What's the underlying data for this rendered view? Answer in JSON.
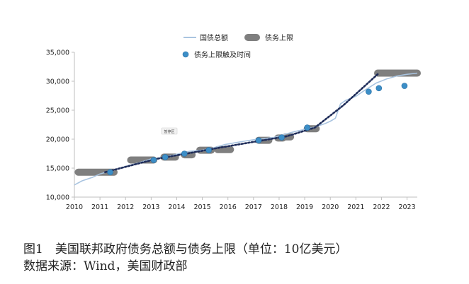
{
  "chart_data": {
    "type": "line",
    "x_range": [
      2010,
      2023.4
    ],
    "ylim": [
      10000,
      35000
    ],
    "y_ticks": [
      10000,
      15000,
      20000,
      25000,
      30000,
      35000
    ],
    "y_tick_labels": [
      "10,000",
      "15,000",
      "20,000",
      "25,000",
      "30,000",
      "35,000"
    ],
    "x_ticks": [
      2010,
      2011,
      2012,
      2013,
      2014,
      2015,
      2016,
      2017,
      2018,
      2019,
      2020,
      2021,
      2022,
      2023
    ],
    "x_tick_labels": [
      "2010",
      "2011",
      "2012",
      "2013",
      "2014",
      "2015",
      "2016",
      "2017",
      "2018",
      "2019",
      "2020",
      "2021",
      "2022",
      "2023"
    ],
    "legend": {
      "placement": "top-center",
      "debt_label": "国债总额",
      "ceiling_label": "债务上限",
      "hit_label": "债务上限触及时间"
    },
    "annotation": "暂停区",
    "series": [
      {
        "name": "国债总额",
        "color": "#a9c4e0",
        "x": [
          2010.0,
          2010.3,
          2010.7,
          2011.0,
          2011.4,
          2011.7,
          2012.0,
          2012.5,
          2013.0,
          2013.5,
          2013.8,
          2014.2,
          2014.5,
          2015.0,
          2015.5,
          2015.9,
          2016.3,
          2016.7,
          2017.0,
          2017.4,
          2017.8,
          2018.2,
          2018.6,
          2019.0,
          2019.4,
          2019.8,
          2020.0,
          2020.2,
          2020.4,
          2020.6,
          2021.0,
          2021.4,
          2021.8,
          2022.2,
          2022.6,
          2023.0,
          2023.4
        ],
        "y": [
          12100,
          12800,
          13400,
          14000,
          14500,
          14900,
          15300,
          15900,
          16600,
          16900,
          17200,
          17600,
          17900,
          18100,
          18600,
          19100,
          19400,
          19700,
          19900,
          20100,
          20300,
          20800,
          21300,
          21700,
          22100,
          22700,
          23100,
          23600,
          26100,
          26700,
          27400,
          28600,
          29700,
          30400,
          30900,
          31200,
          31400
        ]
      },
      {
        "name": "债务上限",
        "color": "#7f7f7f",
        "segments": [
          {
            "x_start": 2010.15,
            "x_end": 2011.55,
            "y": 14300
          },
          {
            "x_start": 2012.2,
            "x_end": 2013.1,
            "y": 16400
          },
          {
            "x_start": 2013.5,
            "x_end": 2013.95,
            "y": 16900
          },
          {
            "x_start": 2014.3,
            "x_end": 2014.6,
            "y": 17300
          },
          {
            "x_start": 2014.9,
            "x_end": 2015.35,
            "y": 18100
          },
          {
            "x_start": 2015.6,
            "x_end": 2016.1,
            "y": 18200
          },
          {
            "x_start": 2017.2,
            "x_end": 2017.6,
            "y": 19800
          },
          {
            "x_start": 2017.95,
            "x_end": 2018.15,
            "y": 20200
          },
          {
            "x_start": 2018.25,
            "x_end": 2018.45,
            "y": 20400
          },
          {
            "x_start": 2019.1,
            "x_end": 2019.45,
            "y": 21800
          },
          {
            "x_start": 2021.85,
            "x_end": 2023.4,
            "y": 31400
          }
        ]
      },
      {
        "name": "债务上限触及时间",
        "color": "#3c8ec7",
        "x": [
          2011.4,
          2013.1,
          2013.55,
          2014.3,
          2015.25,
          2017.2,
          2018.1,
          2019.1,
          2021.5,
          2021.9,
          2022.9
        ],
        "y": [
          14300,
          16400,
          16900,
          17500,
          18100,
          19800,
          20300,
          22000,
          28200,
          28800,
          29200
        ]
      }
    ],
    "trend_line": {
      "style": "dotted",
      "color": "#1f2d5a",
      "x": [
        2011.2,
        2013.2,
        2014.5,
        2015.5,
        2016.7,
        2018.3,
        2019.4,
        2020.5,
        2021.9
      ],
      "y": [
        14300,
        16600,
        17600,
        18400,
        19300,
        20500,
        22000,
        25800,
        31400
      ]
    }
  },
  "caption": {
    "line1": "图1　美国联邦政府债务总额与债务上限（单位：10亿美元）",
    "line2": "数据来源：Wind，美国财政部"
  }
}
